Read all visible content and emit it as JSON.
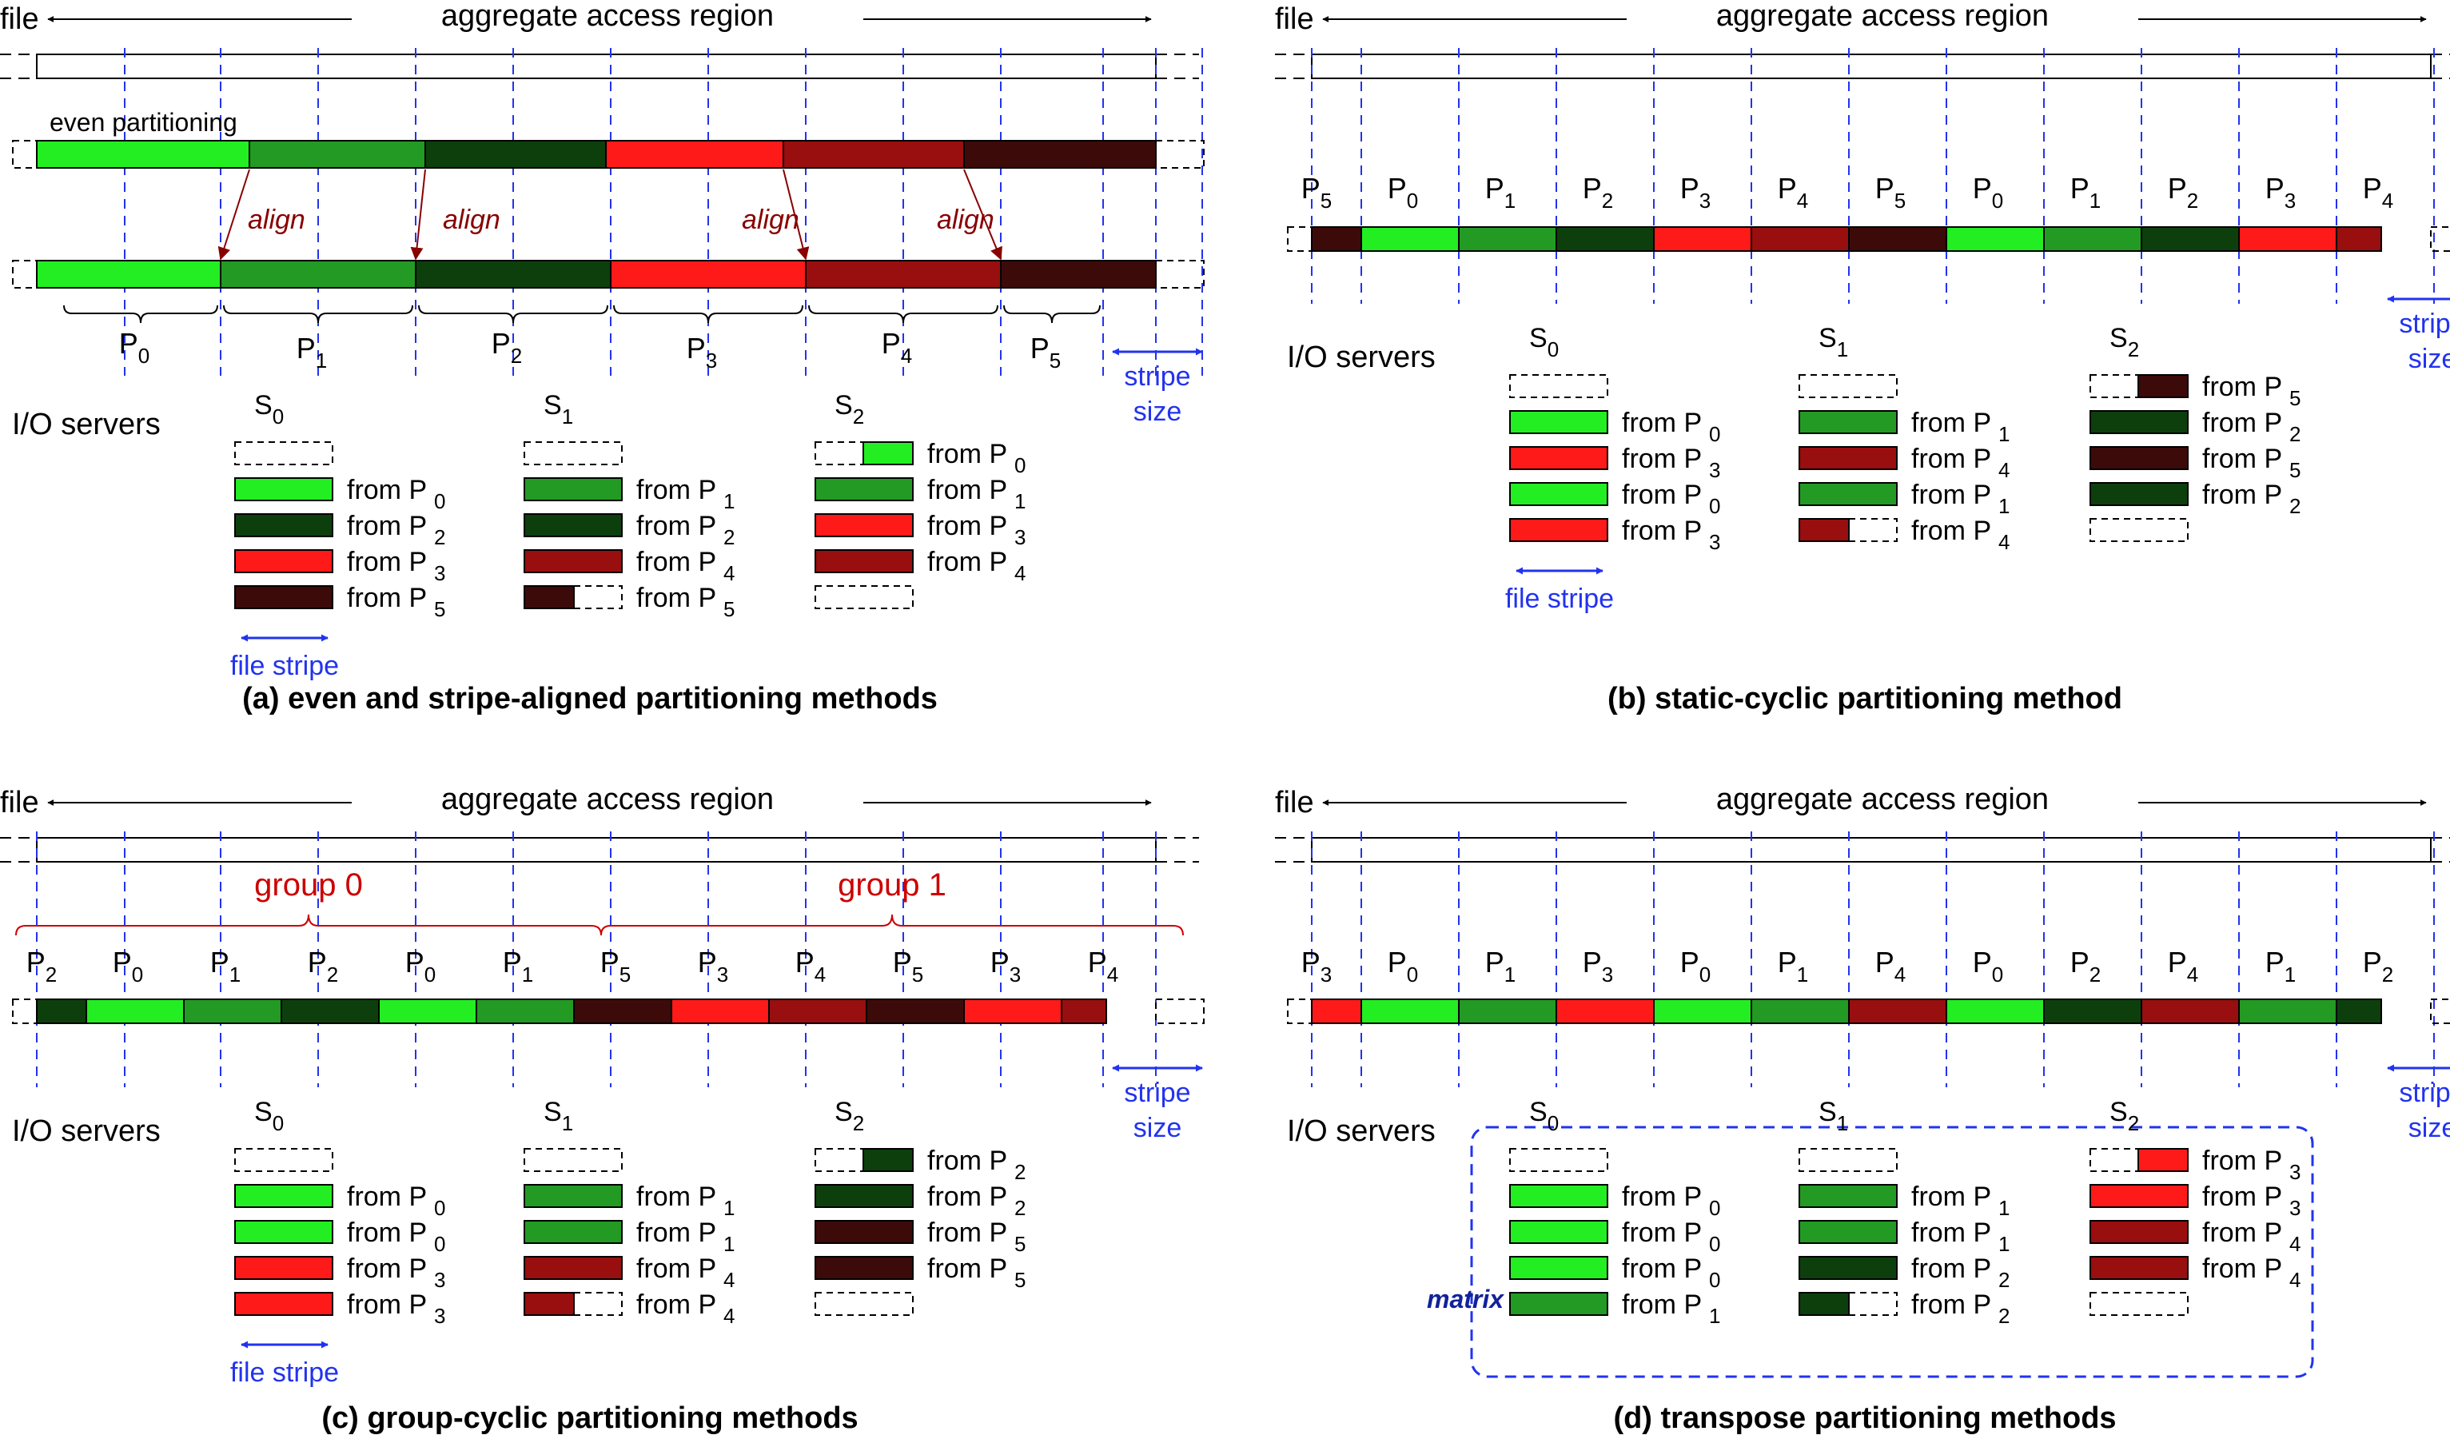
{
  "colors": {
    "P0": "#22ee22",
    "P1": "#239a23",
    "P2": "#0d3f0d",
    "P3": "#ff1a1a",
    "P4": "#990e0e",
    "P5": "#3d0a0a",
    "guide": "#2233ee",
    "red_text": "#bb0000",
    "dark_blue_text": "#12229a"
  },
  "labels": {
    "file": "file",
    "aggregate": "aggregate access region",
    "io_servers": "I/O servers",
    "stripe": "stripe",
    "size": "size",
    "file_stripe": "file stripe",
    "from": "from P",
    "servers": [
      "S",
      "S",
      "S"
    ],
    "server_subs": [
      "0",
      "1",
      "2"
    ]
  },
  "panels": [
    {
      "key": "a",
      "caption": "(a) even and stripe-aligned partitioning methods",
      "even_label": "even partitioning",
      "align_label": "align",
      "even_bar": [
        "P0",
        "P1",
        "P2",
        "P3",
        "P4",
        "P5"
      ],
      "aligned_bar": [
        "P0",
        "P1",
        "P1",
        "P2",
        "P2",
        "P3",
        "P3",
        "P4",
        "P4",
        "P5",
        "P5"
      ],
      "brace_labels": [
        {
          "p": "P",
          "sub": "0"
        },
        {
          "p": "P",
          "sub": "1"
        },
        {
          "p": "P",
          "sub": "2"
        },
        {
          "p": "P",
          "sub": "3"
        },
        {
          "p": "P",
          "sub": "4"
        },
        {
          "p": "P",
          "sub": "5"
        }
      ],
      "servers": [
        {
          "rows": [
            {
              "type": "empty"
            },
            {
              "type": "full",
              "p": "0"
            },
            {
              "type": "full",
              "p": "2"
            },
            {
              "type": "full",
              "p": "3"
            },
            {
              "type": "full",
              "p": "5"
            }
          ]
        },
        {
          "rows": [
            {
              "type": "empty"
            },
            {
              "type": "full",
              "p": "1"
            },
            {
              "type": "full",
              "p": "2"
            },
            {
              "type": "full",
              "p": "4"
            },
            {
              "type": "left",
              "p": "5"
            }
          ]
        },
        {
          "rows": [
            {
              "type": "right",
              "p": "0"
            },
            {
              "type": "full",
              "p": "1"
            },
            {
              "type": "full",
              "p": "3"
            },
            {
              "type": "full",
              "p": "4"
            },
            {
              "type": "empty"
            }
          ]
        }
      ]
    },
    {
      "key": "b",
      "caption": "(b) static-cyclic partitioning method",
      "segments": [
        "5",
        "0",
        "1",
        "2",
        "3",
        "4",
        "5",
        "0",
        "1",
        "2",
        "3",
        "4"
      ],
      "servers": [
        {
          "rows": [
            {
              "type": "empty"
            },
            {
              "type": "full",
              "p": "0"
            },
            {
              "type": "full",
              "p": "3"
            },
            {
              "type": "full",
              "p": "0"
            },
            {
              "type": "full",
              "p": "3"
            }
          ]
        },
        {
          "rows": [
            {
              "type": "empty"
            },
            {
              "type": "full",
              "p": "1"
            },
            {
              "type": "full",
              "p": "4"
            },
            {
              "type": "full",
              "p": "1"
            },
            {
              "type": "left",
              "p": "4"
            }
          ]
        },
        {
          "rows": [
            {
              "type": "right",
              "p": "5"
            },
            {
              "type": "full",
              "p": "2"
            },
            {
              "type": "full",
              "p": "5"
            },
            {
              "type": "full",
              "p": "2"
            },
            {
              "type": "empty"
            }
          ]
        }
      ]
    },
    {
      "key": "c",
      "caption": "(c) group-cyclic partitioning methods",
      "groups": [
        "group 0",
        "group 1"
      ],
      "segments": [
        "2",
        "0",
        "1",
        "2",
        "0",
        "1",
        "5",
        "3",
        "4",
        "5",
        "3",
        "4"
      ],
      "servers": [
        {
          "rows": [
            {
              "type": "empty"
            },
            {
              "type": "full",
              "p": "0"
            },
            {
              "type": "full",
              "p": "0"
            },
            {
              "type": "full",
              "p": "3"
            },
            {
              "type": "full",
              "p": "3"
            }
          ]
        },
        {
          "rows": [
            {
              "type": "empty"
            },
            {
              "type": "full",
              "p": "1"
            },
            {
              "type": "full",
              "p": "1"
            },
            {
              "type": "full",
              "p": "4"
            },
            {
              "type": "left",
              "p": "4"
            }
          ]
        },
        {
          "rows": [
            {
              "type": "right",
              "p": "2"
            },
            {
              "type": "full",
              "p": "2"
            },
            {
              "type": "full",
              "p": "5"
            },
            {
              "type": "full",
              "p": "5"
            },
            {
              "type": "empty"
            }
          ]
        }
      ]
    },
    {
      "key": "d",
      "caption": "(d) transpose partitioning methods",
      "matrix_label": "matrix",
      "segments": [
        "3",
        "0",
        "1",
        "3",
        "0",
        "1",
        "4",
        "0",
        "2",
        "4",
        "1",
        "2"
      ],
      "servers": [
        {
          "rows": [
            {
              "type": "empty"
            },
            {
              "type": "full",
              "p": "0"
            },
            {
              "type": "full",
              "p": "0"
            },
            {
              "type": "full",
              "p": "0"
            },
            {
              "type": "full",
              "p": "1"
            }
          ]
        },
        {
          "rows": [
            {
              "type": "empty"
            },
            {
              "type": "full",
              "p": "1"
            },
            {
              "type": "full",
              "p": "1"
            },
            {
              "type": "full",
              "p": "2"
            },
            {
              "type": "left",
              "p": "2"
            }
          ]
        },
        {
          "rows": [
            {
              "type": "right",
              "p": "3"
            },
            {
              "type": "full",
              "p": "3"
            },
            {
              "type": "full",
              "p": "4"
            },
            {
              "type": "full",
              "p": "4"
            },
            {
              "type": "empty"
            }
          ]
        }
      ]
    }
  ]
}
